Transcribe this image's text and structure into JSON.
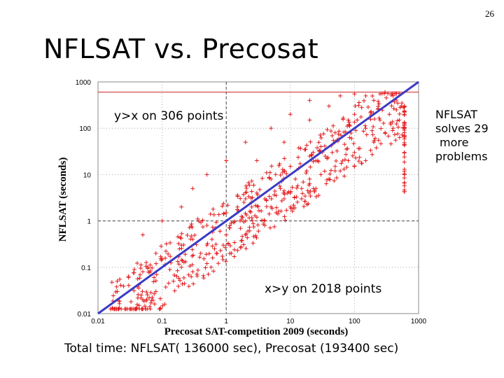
{
  "slide": {
    "number": "26",
    "title": "NFLSAT vs. Precosat",
    "note_upper": "y>x  on 306 points",
    "note_lower": "x>y  on 2018 points",
    "note_right_lines": [
      "NFLSAT",
      "solves 29",
      "more",
      "problems"
    ],
    "total_time": "Total time: NFLSAT( 136000 sec), Precosat (193400 sec)"
  },
  "chart_data": {
    "type": "scatter",
    "xlabel": "Precosat SAT-competition 2009 (seconds)",
    "ylabel": "NFLSAT (seconds)",
    "xscale": "log",
    "yscale": "log",
    "xlim": [
      0.01,
      1000
    ],
    "ylim": [
      0.01,
      1000
    ],
    "x_ticks": [
      "0.01",
      "0.1",
      "1",
      "10",
      "100",
      "1000"
    ],
    "y_ticks": [
      "0.01",
      "0.1",
      "1",
      "10",
      "100",
      "1000"
    ],
    "dashed_reference_x": 1,
    "dashed_reference_y": 1,
    "timeout_line_y": 600,
    "diagonal": "y = x",
    "colors": {
      "points": "#e31a1c",
      "diagonal": "#3b3bc4",
      "timeout": "#cc2222",
      "frame": "#888888"
    },
    "series": [
      {
        "marker": "plus",
        "points_sample": [
          [
            0.02,
            0.05
          ],
          [
            0.05,
            0.08
          ],
          [
            0.1,
            0.15
          ],
          [
            0.2,
            0.3
          ],
          [
            0.3,
            0.4
          ],
          [
            0.5,
            0.8
          ],
          [
            1,
            1.5
          ],
          [
            1.5,
            2
          ],
          [
            2,
            3
          ],
          [
            3,
            4
          ],
          [
            5,
            8
          ],
          [
            8,
            12
          ],
          [
            10,
            15
          ],
          [
            20,
            25
          ],
          [
            30,
            40
          ],
          [
            50,
            80
          ],
          [
            80,
            150
          ],
          [
            100,
            200
          ],
          [
            200,
            400
          ],
          [
            300,
            600
          ],
          [
            0.05,
            0.5
          ],
          [
            0.1,
            1
          ],
          [
            0.2,
            2
          ],
          [
            0.3,
            5
          ],
          [
            0.5,
            10
          ],
          [
            1,
            20
          ],
          [
            2,
            50
          ],
          [
            5,
            100
          ],
          [
            10,
            200
          ],
          [
            20,
            400
          ],
          [
            0.2,
            0.1
          ],
          [
            0.5,
            0.3
          ],
          [
            1,
            0.5
          ],
          [
            2,
            1
          ],
          [
            3,
            1.2
          ],
          [
            5,
            2
          ],
          [
            8,
            3
          ],
          [
            10,
            4
          ],
          [
            15,
            5
          ],
          [
            20,
            8
          ],
          [
            30,
            10
          ],
          [
            50,
            15
          ],
          [
            80,
            20
          ],
          [
            100,
            30
          ],
          [
            200,
            50
          ],
          [
            300,
            80
          ],
          [
            400,
            100
          ],
          [
            500,
            150
          ],
          [
            600,
            200
          ],
          [
            600,
            300
          ],
          [
            600,
            80
          ],
          [
            600,
            30
          ],
          [
            600,
            10
          ],
          [
            1.2,
            0.2
          ],
          [
            2,
            0.5
          ],
          [
            4,
            0.8
          ],
          [
            6,
            1.5
          ],
          [
            10,
            2
          ],
          [
            15,
            3
          ],
          [
            25,
            5
          ],
          [
            40,
            8
          ],
          [
            60,
            12
          ],
          [
            100,
            15
          ],
          [
            150,
            20
          ],
          [
            0.08,
            0.03
          ],
          [
            0.15,
            0.05
          ],
          [
            0.3,
            0.08
          ],
          [
            0.5,
            0.12
          ],
          [
            0.7,
            0.2
          ],
          [
            0.9,
            0.3
          ],
          [
            0.05,
            0.02
          ],
          [
            0.02,
            0.03
          ],
          [
            0.03,
            0.06
          ],
          [
            0.06,
            0.1
          ],
          [
            0.08,
            0.2
          ],
          [
            0.4,
            0.2
          ],
          [
            0.6,
            0.4
          ],
          [
            0.8,
            0.6
          ],
          [
            1.2,
            0.9
          ],
          [
            1.8,
            1.2
          ],
          [
            2.5,
            2
          ],
          [
            4,
            3
          ],
          [
            7,
            5
          ],
          [
            12,
            8
          ],
          [
            18,
            12
          ],
          [
            25,
            20
          ],
          [
            35,
            25
          ],
          [
            45,
            30
          ],
          [
            70,
            45
          ],
          [
            90,
            60
          ],
          [
            150,
            100
          ],
          [
            250,
            150
          ],
          [
            350,
            200
          ],
          [
            450,
            250
          ],
          [
            550,
            350
          ],
          [
            3,
            20
          ],
          [
            8,
            50
          ],
          [
            20,
            150
          ],
          [
            40,
            300
          ],
          [
            60,
            500
          ],
          [
            100,
            550
          ],
          [
            150,
            500
          ],
          [
            250,
            550
          ],
          [
            400,
            500
          ]
        ]
      }
    ]
  }
}
